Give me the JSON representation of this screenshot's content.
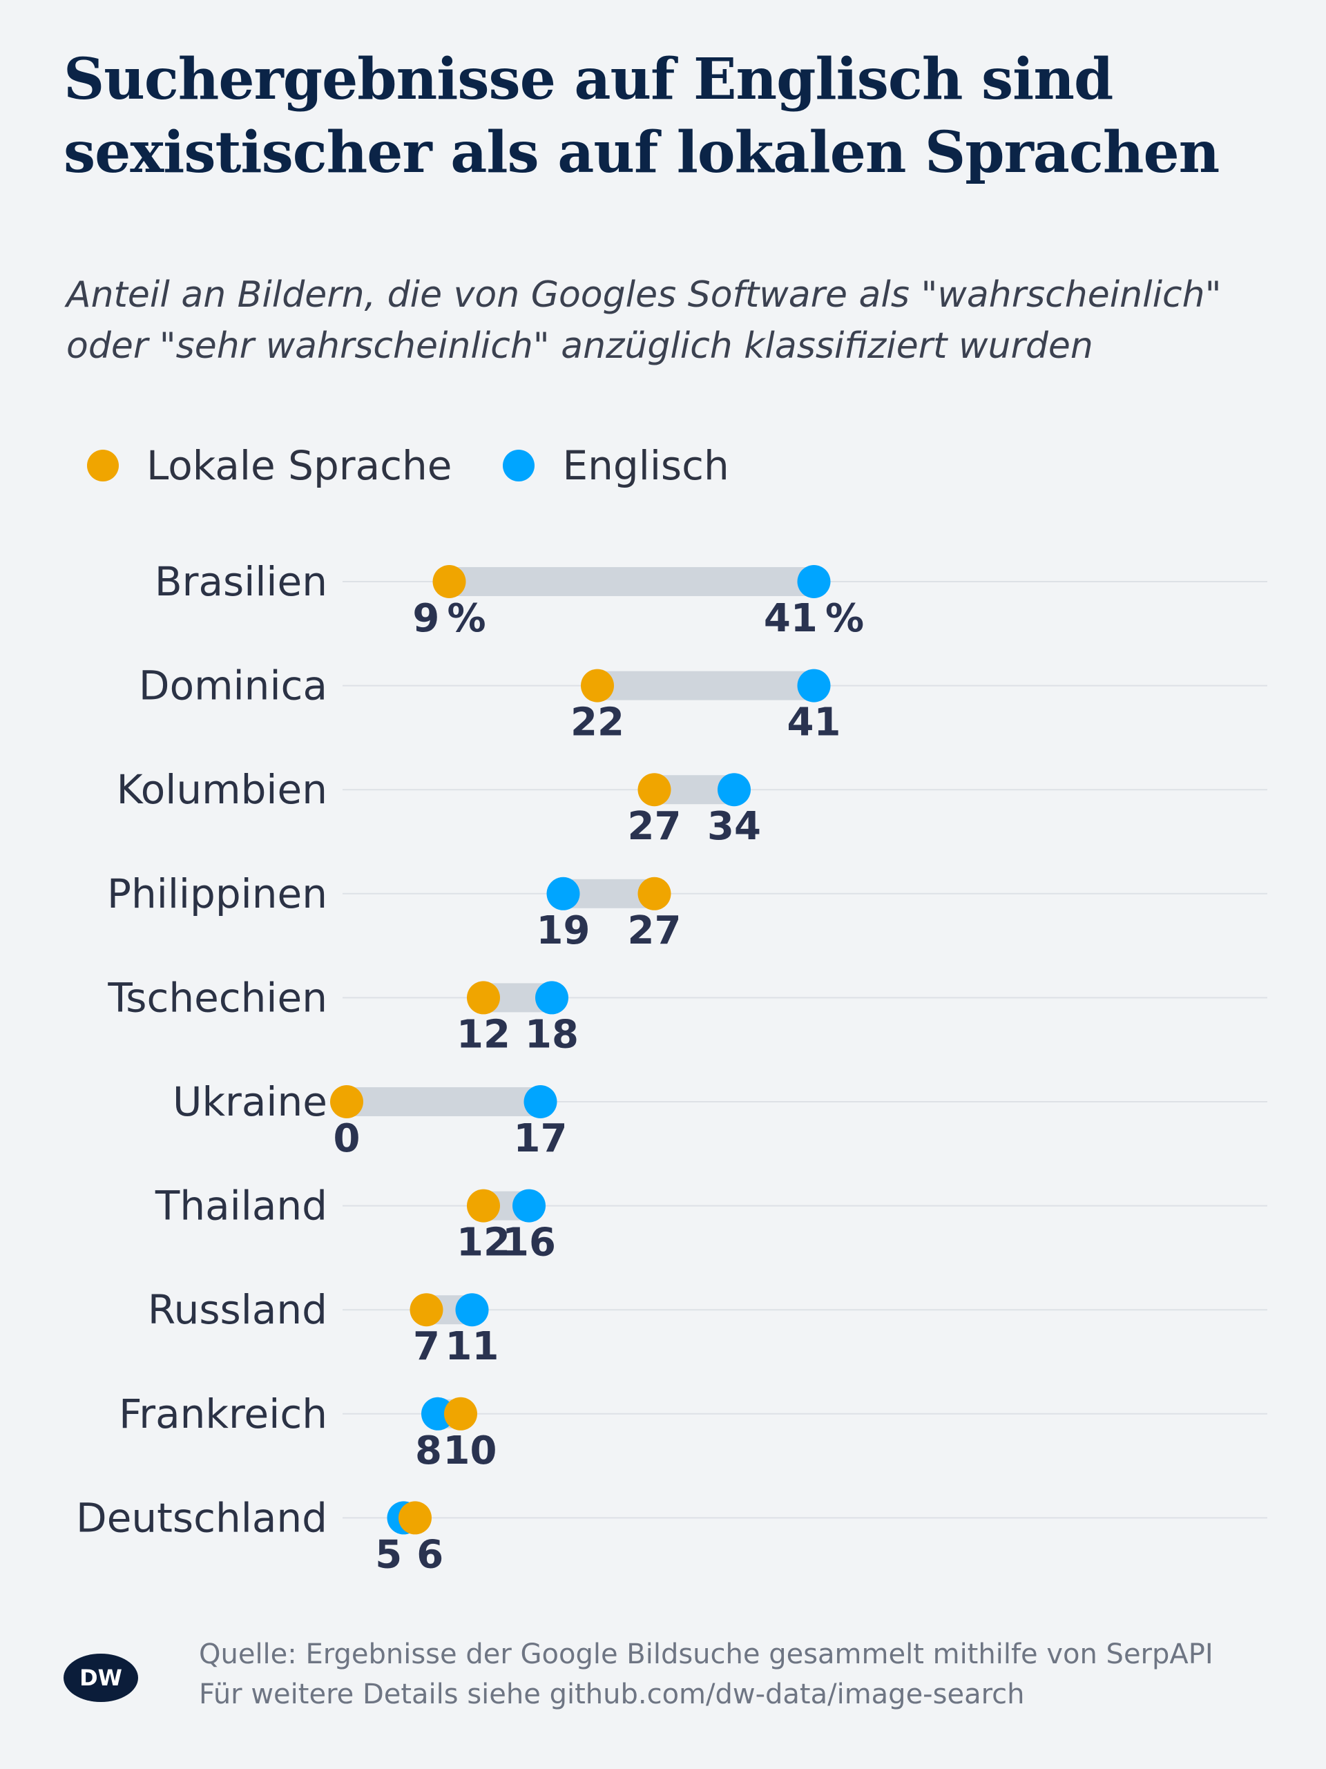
{
  "title": "Suchergebnisse auf Englisch sind sexistischer als auf lokalen Sprachen",
  "subtitle": "Anteil an Bildern, die von Googles Software als \"wahrscheinlich\" oder \"sehr wahrscheinlich\" anzüglich klassifiziert wurden",
  "legend": {
    "local": "Lokale Sprache",
    "english": "Englisch"
  },
  "colors": {
    "local": "#f0a500",
    "english": "#00a5ff",
    "bar": "#cfd5dc",
    "gridline": "#dde1e6",
    "background": "#f2f4f6"
  },
  "chart_data": {
    "type": "dumbbell",
    "unit": "%",
    "categories": [
      "Brasilien",
      "Dominica",
      "Kolumbien",
      "Philippinen",
      "Tschechien",
      "Ukraine",
      "Thailand",
      "Russland",
      "Frankreich",
      "Deutschland"
    ],
    "series": [
      {
        "name": "Lokale Sprache",
        "values": [
          9,
          22,
          27,
          27,
          12,
          0,
          12,
          7,
          10,
          6
        ]
      },
      {
        "name": "Englisch",
        "values": [
          41,
          41,
          34,
          19,
          18,
          17,
          16,
          11,
          8,
          5
        ]
      }
    ],
    "xlim": [
      0,
      50
    ],
    "grid": true,
    "legend_position": "top-left"
  },
  "source": {
    "line1": "Quelle: Ergebnisse der Google Bildsuche gesammelt mithilfe von SerpAPI",
    "line2": "Für weitere Details siehe github.com/dw-data/image-search"
  },
  "logo_text": "DW"
}
